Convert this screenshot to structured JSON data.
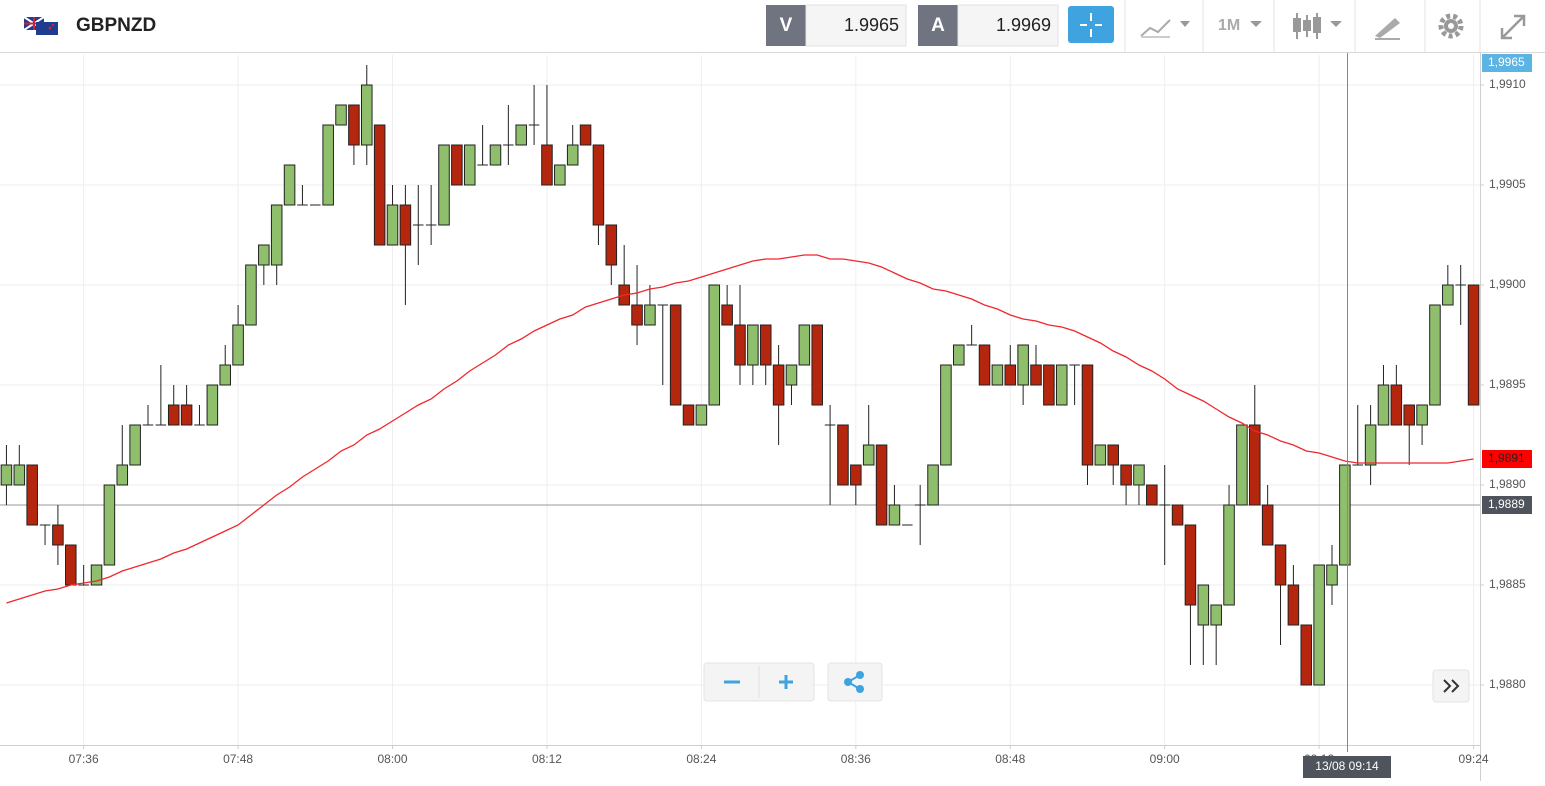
{
  "header": {
    "symbol": "GBPNZD",
    "sell_label": "V",
    "sell_price": "1.9965",
    "buy_label": "A",
    "buy_price": "1.9969",
    "timeframe": "1M"
  },
  "chart_data": {
    "type": "candlestick",
    "x": [
      "07:30",
      "07:31",
      "07:32",
      "07:33",
      "07:34",
      "07:35",
      "07:36",
      "07:37",
      "07:38",
      "07:39",
      "07:40",
      "07:41",
      "07:42",
      "07:43",
      "07:44",
      "07:45",
      "07:46",
      "07:47",
      "07:48",
      "07:49",
      "07:50",
      "07:51",
      "07:52",
      "07:53",
      "07:54",
      "07:55",
      "07:56",
      "07:57",
      "07:58",
      "07:59",
      "08:00",
      "08:01",
      "08:02",
      "08:03",
      "08:04",
      "08:05",
      "08:06",
      "08:07",
      "08:08",
      "08:09",
      "08:10",
      "08:11",
      "08:12",
      "08:13",
      "08:14",
      "08:15",
      "08:16",
      "08:17",
      "08:18",
      "08:19",
      "08:20",
      "08:21",
      "08:22",
      "08:23",
      "08:24",
      "08:25",
      "08:26",
      "08:27",
      "08:28",
      "08:29",
      "08:30",
      "08:31",
      "08:32",
      "08:33",
      "08:34",
      "08:35",
      "08:36",
      "08:37",
      "08:38",
      "08:39",
      "08:40",
      "08:41",
      "08:42",
      "08:43",
      "08:44",
      "08:45",
      "08:46",
      "08:47",
      "08:48",
      "08:49",
      "08:50",
      "08:51",
      "08:52",
      "08:53",
      "08:54",
      "08:55",
      "08:56",
      "08:57",
      "08:58",
      "08:59",
      "09:00",
      "09:01",
      "09:02",
      "09:03",
      "09:04",
      "09:05",
      "09:06",
      "09:07",
      "09:08",
      "09:09",
      "09:10",
      "09:11",
      "09:12",
      "09:13",
      "09:14",
      "09:15",
      "09:16",
      "09:17",
      "09:18",
      "09:19",
      "09:20",
      "09:21",
      "09:22",
      "09:23",
      "09:24"
    ],
    "open": [
      1.989,
      1.989,
      1.9891,
      1.9888,
      1.9888,
      1.9887,
      1.9885,
      1.9885,
      1.9886,
      1.989,
      1.9891,
      1.9893,
      1.9893,
      1.9894,
      1.9894,
      1.9893,
      1.9893,
      1.9895,
      1.9896,
      1.9898,
      1.9901,
      1.9901,
      1.9904,
      1.9904,
      1.9904,
      1.9904,
      1.9908,
      1.9909,
      1.9907,
      1.9908,
      1.9902,
      1.9904,
      1.9903,
      1.9903,
      1.9903,
      1.9907,
      1.9905,
      1.9906,
      1.9906,
      1.9907,
      1.9907,
      1.9908,
      1.9907,
      1.9905,
      1.9906,
      1.9908,
      1.9907,
      1.9903,
      1.99,
      1.9899,
      1.9898,
      1.9899,
      1.9899,
      1.9894,
      1.9893,
      1.9894,
      1.9899,
      1.9898,
      1.9896,
      1.9898,
      1.9896,
      1.9895,
      1.9896,
      1.9898,
      1.9893,
      1.9893,
      1.9891,
      1.9891,
      1.9892,
      1.9888,
      1.9888,
      1.9889,
      1.9889,
      1.9891,
      1.9896,
      1.9897,
      1.9897,
      1.9895,
      1.9896,
      1.9895,
      1.9896,
      1.9896,
      1.9894,
      1.9896,
      1.9896,
      1.9891,
      1.9892,
      1.9891,
      1.989,
      1.989,
      1.9889,
      1.9889,
      1.9888,
      1.9883,
      1.9883,
      1.9884,
      1.9889,
      1.9893,
      1.9889,
      1.9887,
      1.9885,
      1.9883,
      1.988,
      1.9885,
      1.9886,
      1.9891,
      1.9891,
      1.9893,
      1.9895,
      1.9894,
      1.9893,
      1.9894,
      1.9899,
      1.99,
      1.99
    ],
    "high": [
      1.9892,
      1.9892,
      1.9891,
      1.9888,
      1.9889,
      1.9887,
      1.9886,
      1.9886,
      1.989,
      1.9893,
      1.9893,
      1.9894,
      1.9896,
      1.9895,
      1.9895,
      1.9894,
      1.9895,
      1.9897,
      1.9899,
      1.9901,
      1.9902,
      1.9904,
      1.9906,
      1.9905,
      1.9904,
      1.9908,
      1.9909,
      1.9909,
      1.9911,
      1.9908,
      1.9905,
      1.9905,
      1.9905,
      1.9905,
      1.9907,
      1.9907,
      1.9907,
      1.9908,
      1.9907,
      1.9909,
      1.9908,
      1.991,
      1.991,
      1.9906,
      1.9908,
      1.9908,
      1.9907,
      1.9903,
      1.9902,
      1.9901,
      1.99,
      1.9899,
      1.9899,
      1.9894,
      1.9894,
      1.99,
      1.99,
      1.99,
      1.9898,
      1.9898,
      1.9897,
      1.9896,
      1.9898,
      1.9898,
      1.9894,
      1.9893,
      1.9891,
      1.9894,
      1.9892,
      1.989,
      1.9888,
      1.989,
      1.9891,
      1.9896,
      1.9897,
      1.9898,
      1.9897,
      1.9896,
      1.9897,
      1.9897,
      1.9897,
      1.9896,
      1.9896,
      1.9896,
      1.9896,
      1.9892,
      1.9892,
      1.9891,
      1.9891,
      1.989,
      1.9891,
      1.9889,
      1.9888,
      1.9885,
      1.9884,
      1.989,
      1.9893,
      1.9895,
      1.989,
      1.9887,
      1.9886,
      1.9883,
      1.9886,
      1.9887,
      1.9891,
      1.9894,
      1.9894,
      1.9896,
      1.9896,
      1.9894,
      1.9894,
      1.9899,
      1.9901,
      1.9901,
      1.99
    ],
    "low": [
      1.9889,
      1.989,
      1.9888,
      1.9887,
      1.9886,
      1.9885,
      1.9885,
      1.9885,
      1.9886,
      1.989,
      1.9891,
      1.9893,
      1.9893,
      1.9893,
      1.9893,
      1.9893,
      1.9893,
      1.9895,
      1.9896,
      1.9898,
      1.99,
      1.99,
      1.9904,
      1.9904,
      1.9904,
      1.9904,
      1.9908,
      1.9906,
      1.9906,
      1.9902,
      1.9902,
      1.9899,
      1.9901,
      1.9902,
      1.9903,
      1.9905,
      1.9905,
      1.9906,
      1.9906,
      1.9906,
      1.9907,
      1.9907,
      1.9905,
      1.9905,
      1.9906,
      1.9907,
      1.9902,
      1.99,
      1.9899,
      1.9897,
      1.9898,
      1.9895,
      1.9894,
      1.9893,
      1.9893,
      1.9894,
      1.9898,
      1.9895,
      1.9895,
      1.9895,
      1.9892,
      1.9894,
      1.9896,
      1.9894,
      1.9889,
      1.989,
      1.9889,
      1.9891,
      1.9888,
      1.9888,
      1.9888,
      1.9887,
      1.9889,
      1.9891,
      1.9896,
      1.9897,
      1.9895,
      1.9895,
      1.9895,
      1.9894,
      1.9895,
      1.9894,
      1.9894,
      1.9894,
      1.989,
      1.9891,
      1.989,
      1.9889,
      1.9889,
      1.9889,
      1.9886,
      1.9888,
      1.9881,
      1.9881,
      1.9881,
      1.9884,
      1.9889,
      1.9889,
      1.9887,
      1.9882,
      1.9883,
      1.988,
      1.988,
      1.9884,
      1.9886,
      1.9891,
      1.989,
      1.9893,
      1.9893,
      1.9891,
      1.9892,
      1.9894,
      1.9899,
      1.9898,
      1.9894
    ],
    "close": [
      1.9891,
      1.9891,
      1.9888,
      1.9888,
      1.9887,
      1.9885,
      1.9885,
      1.9886,
      1.989,
      1.9891,
      1.9893,
      1.9893,
      1.9893,
      1.9893,
      1.9893,
      1.9893,
      1.9895,
      1.9896,
      1.9898,
      1.9901,
      1.9902,
      1.9904,
      1.9906,
      1.9904,
      1.9904,
      1.9908,
      1.9909,
      1.9907,
      1.991,
      1.9902,
      1.9904,
      1.9902,
      1.9903,
      1.9903,
      1.9907,
      1.9905,
      1.9907,
      1.9906,
      1.9907,
      1.9907,
      1.9908,
      1.9908,
      1.9905,
      1.9906,
      1.9907,
      1.9907,
      1.9903,
      1.9901,
      1.9899,
      1.9898,
      1.9899,
      1.9899,
      1.9894,
      1.9893,
      1.9894,
      1.99,
      1.9898,
      1.9896,
      1.9898,
      1.9896,
      1.9894,
      1.9896,
      1.9898,
      1.9894,
      1.9893,
      1.989,
      1.989,
      1.9892,
      1.9888,
      1.9889,
      1.9888,
      1.9889,
      1.9891,
      1.9896,
      1.9897,
      1.9897,
      1.9895,
      1.9896,
      1.9895,
      1.9897,
      1.9895,
      1.9894,
      1.9896,
      1.9896,
      1.9891,
      1.9892,
      1.9891,
      1.989,
      1.9891,
      1.9889,
      1.9889,
      1.9888,
      1.9884,
      1.9885,
      1.9884,
      1.9889,
      1.9893,
      1.9889,
      1.9887,
      1.9885,
      1.9883,
      1.988,
      1.9886,
      1.9886,
      1.9891,
      1.9891,
      1.9893,
      1.9895,
      1.9893,
      1.9893,
      1.9894,
      1.9899,
      1.99,
      1.99,
      1.9894
    ],
    "up_color": "#8fbe6c",
    "down_color": "#b5260e",
    "moving_average": {
      "color": "#f0272d",
      "values": [
        1.98841,
        1.98843,
        1.98845,
        1.98847,
        1.98848,
        1.9885,
        1.98851,
        1.98852,
        1.98854,
        1.98857,
        1.98859,
        1.98861,
        1.98863,
        1.98866,
        1.98868,
        1.98871,
        1.98874,
        1.98877,
        1.9888,
        1.98885,
        1.9889,
        1.98895,
        1.98899,
        1.98904,
        1.98908,
        1.98912,
        1.98917,
        1.9892,
        1.98925,
        1.98928,
        1.98932,
        1.98936,
        1.9894,
        1.98943,
        1.98948,
        1.98952,
        1.98957,
        1.98961,
        1.98965,
        1.9897,
        1.98973,
        1.98977,
        1.9898,
        1.98983,
        1.98985,
        1.98989,
        1.98991,
        1.98993,
        1.98995,
        1.98996,
        1.98998,
        1.98999,
        1.99001,
        1.99002,
        1.99004,
        1.99006,
        1.99008,
        1.9901,
        1.99012,
        1.99013,
        1.99013,
        1.99014,
        1.99015,
        1.99015,
        1.99013,
        1.99013,
        1.99012,
        1.99011,
        1.99009,
        1.99006,
        1.99003,
        1.99001,
        1.98998,
        1.98997,
        1.98995,
        1.98993,
        1.9899,
        1.98988,
        1.98985,
        1.98983,
        1.98982,
        1.9898,
        1.98979,
        1.98977,
        1.98974,
        1.98971,
        1.98967,
        1.98964,
        1.9896,
        1.98957,
        1.98953,
        1.98948,
        1.98945,
        1.98942,
        1.98938,
        1.98934,
        1.98931,
        1.98927,
        1.98925,
        1.98922,
        1.9892,
        1.98917,
        1.98916,
        1.98914,
        1.98912,
        1.98911,
        1.98911,
        1.98911,
        1.98911,
        1.98911,
        1.98911,
        1.98911,
        1.98911,
        1.98912,
        1.98913
      ]
    },
    "ylim": [
      1.9877,
      1.99115
    ],
    "yticks": [
      {
        "value": 1.991,
        "label": "1,9910"
      },
      {
        "value": 1.9905,
        "label": "1,9905"
      },
      {
        "value": 1.99,
        "label": "1,9900"
      },
      {
        "value": 1.9895,
        "label": "1,9895"
      },
      {
        "value": 1.989,
        "label": "1,9890"
      },
      {
        "value": 1.9885,
        "label": "1,9885"
      },
      {
        "value": 1.988,
        "label": "1,9880"
      }
    ],
    "xticks": [
      "07:36",
      "07:48",
      "08:00",
      "08:12",
      "08:24",
      "08:36",
      "08:48",
      "09:00",
      "09:12",
      "09:24"
    ],
    "grid": true,
    "price_tag_top": "1,9965",
    "ma_tag": {
      "value": 1.98913,
      "label": "1,9891"
    },
    "crosshair": {
      "y": {
        "value": 1.9889,
        "label": "1,9889"
      },
      "x_label": "13/08 09:14"
    }
  }
}
